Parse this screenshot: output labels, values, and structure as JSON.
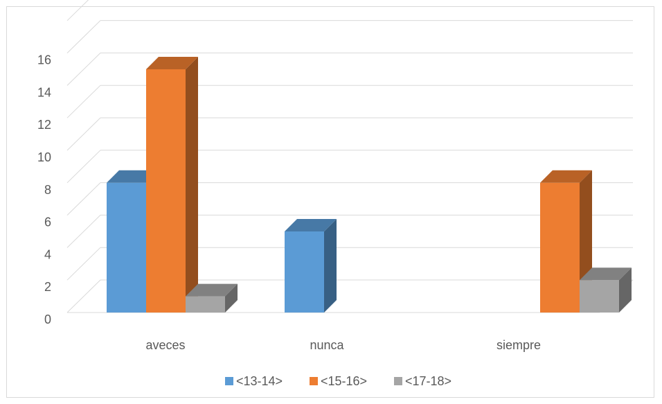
{
  "chart_data": {
    "type": "bar",
    "style": "3d-clustered-column",
    "categories": [
      "aveces",
      "nunca",
      "siempre"
    ],
    "series": [
      {
        "name": "<13-14>",
        "color": "#5b9bd5",
        "values": [
          8,
          5,
          0
        ]
      },
      {
        "name": "<15-16>",
        "color": "#ed7d31",
        "values": [
          15,
          0,
          8
        ]
      },
      {
        "name": "<17-18>",
        "color": "#a5a5a5",
        "values": [
          1,
          0,
          2
        ]
      }
    ],
    "yticks": [
      "0",
      "2",
      "4",
      "6",
      "8",
      "10",
      "12",
      "14",
      "16"
    ],
    "ylim": [
      0,
      16
    ],
    "grid": true,
    "legend": "bottom",
    "title": "",
    "xlabel": "",
    "ylabel": ""
  }
}
